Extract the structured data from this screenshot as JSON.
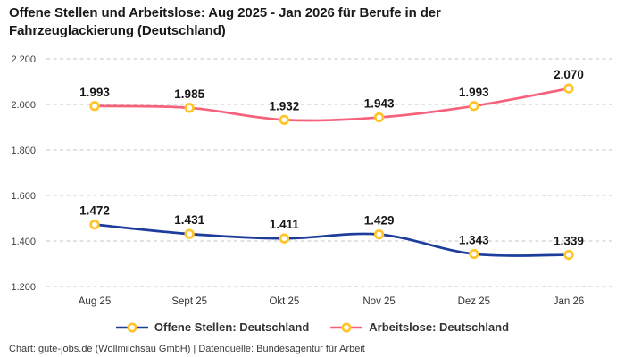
{
  "title_lines": [
    "Offene Stellen und Arbeitslose: Aug 2025 - Jan 2026 für Berufe in der",
    "Fahrzeuglackierung (Deutschland)"
  ],
  "legend": {
    "items": [
      {
        "label": "Offene Stellen: Deutschland",
        "color": "#1e3c99"
      },
      {
        "label": "Arbeitslose: Deutschland",
        "color": "#f6617b"
      }
    ]
  },
  "footer": {
    "text": "Chart: gute-jobs.de (Wollmilchsau GmbH) | Datenquelle: Bundesagentur für Arbeit"
  },
  "colors": {
    "marker_ring": "#ffc428",
    "marker_fill": "#ffffff",
    "grid": "#c6c6c6",
    "axis_text": "#3d3d3d",
    "x_axis_text": "#333333",
    "value_label_text": "#161616"
  },
  "chart_data": {
    "type": "line",
    "title": "Offene Stellen und Arbeitslose: Aug 2025 - Jan 2026 für Berufe in der Fahrzeuglackierung (Deutschland)",
    "categories": [
      "Aug 25",
      "Sept 25",
      "Okt 25",
      "Nov 25",
      "Dez 25",
      "Jan 26"
    ],
    "series": [
      {
        "name": "Offene Stellen: Deutschland",
        "color": "#1e3c99",
        "values": [
          1472,
          1431,
          1411,
          1429,
          1343,
          1339
        ],
        "value_labels": [
          "1.472",
          "1.431",
          "1.411",
          "1.429",
          "1.343",
          "1.339"
        ]
      },
      {
        "name": "Arbeitslose: Deutschland",
        "color": "#f6617b",
        "values": [
          1993,
          1985,
          1932,
          1943,
          1993,
          2070
        ],
        "value_labels": [
          "1.993",
          "1.985",
          "1.932",
          "1.943",
          "1.993",
          "2.070"
        ]
      }
    ],
    "y_ticks": [
      {
        "value": 2200,
        "label": "2.200"
      },
      {
        "value": 2000,
        "label": "2.000"
      },
      {
        "value": 1800,
        "label": "1.800"
      },
      {
        "value": 1600,
        "label": "1.600"
      },
      {
        "value": 1400,
        "label": "1.400"
      },
      {
        "value": 1200,
        "label": "1.200"
      }
    ],
    "ylim": [
      1200,
      2200
    ],
    "grid": "dashed",
    "legend_position": "bottom",
    "smooth": true
  }
}
